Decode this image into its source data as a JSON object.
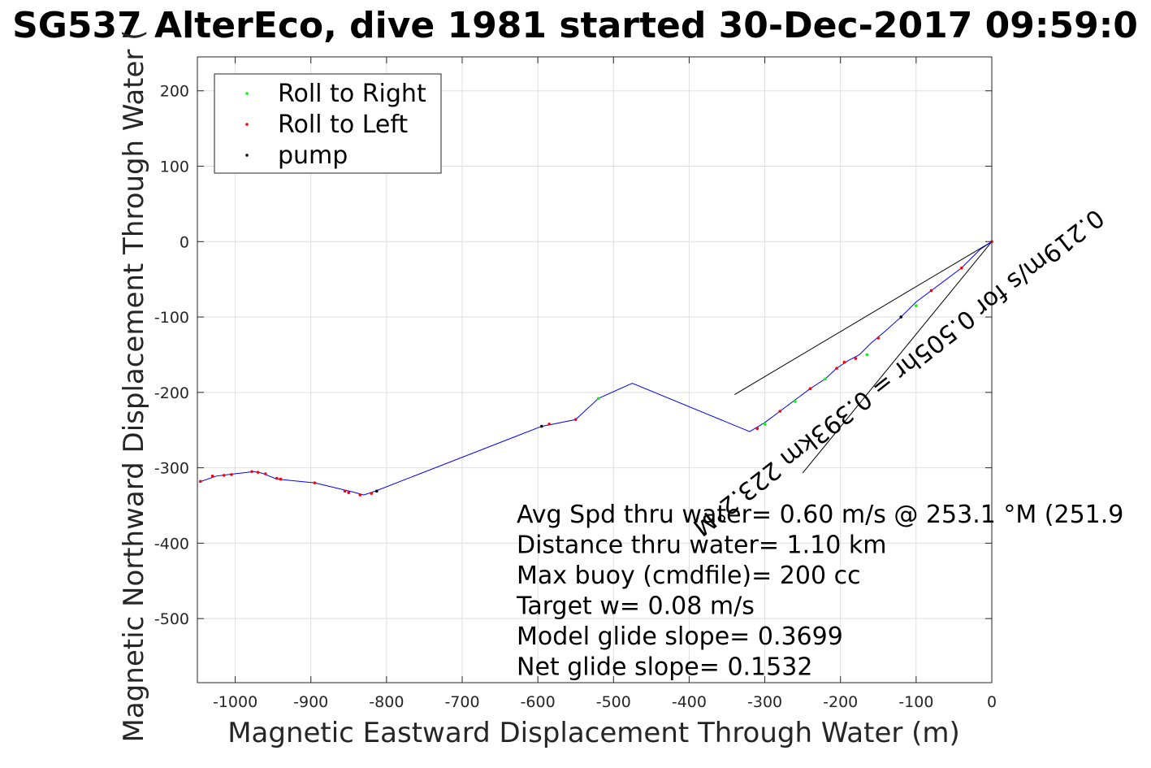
{
  "chart_data": {
    "type": "scatter",
    "title": "SG537 AlterEco, dive 1981 started 30-Dec-2017 09:59:0",
    "xlabel": "Magnetic Eastward Displacement Through Water (m)",
    "ylabel": "Magnetic Northward Displacement Through Water (",
    "xlim": [
      -1050,
      0
    ],
    "ylim": [
      -585,
      245
    ],
    "xticks": [
      -1000,
      -900,
      -800,
      -700,
      -600,
      -500,
      -400,
      -300,
      -200,
      -100,
      0
    ],
    "yticks": [
      200,
      100,
      0,
      -100,
      -200,
      -300,
      -400,
      -500
    ],
    "grid": true,
    "legend_position": "top-left",
    "legend": [
      {
        "label": "Roll to Right",
        "color": "#00ff00"
      },
      {
        "label": "Roll to Left",
        "color": "#ff0000"
      },
      {
        "label": "pump",
        "color": "#000000"
      }
    ],
    "track": {
      "color": "#0000ff",
      "points": [
        [
          0,
          0
        ],
        [
          -15,
          -10
        ],
        [
          -40,
          -35
        ],
        [
          -60,
          -50
        ],
        [
          -80,
          -65
        ],
        [
          -100,
          -80
        ],
        [
          -120,
          -100
        ],
        [
          -140,
          -118
        ],
        [
          -160,
          -135
        ],
        [
          -175,
          -150
        ],
        [
          -190,
          -158
        ],
        [
          -205,
          -168
        ],
        [
          -220,
          -182
        ],
        [
          -240,
          -195
        ],
        [
          -260,
          -210
        ],
        [
          -280,
          -225
        ],
        [
          -300,
          -240
        ],
        [
          -320,
          -252
        ],
        [
          -475,
          -188
        ],
        [
          -480,
          -190
        ],
        [
          -520,
          -208
        ],
        [
          -550,
          -236
        ],
        [
          -595,
          -245
        ],
        [
          -815,
          -331
        ],
        [
          -830,
          -336
        ],
        [
          -845,
          -332
        ],
        [
          -895,
          -320
        ],
        [
          -945,
          -315
        ],
        [
          -965,
          -307
        ],
        [
          -975,
          -305
        ],
        [
          -1010,
          -309
        ],
        [
          -1025,
          -311
        ],
        [
          -1048,
          -319
        ]
      ]
    },
    "series": [
      {
        "name": "Roll to Right",
        "color": "#00ff00",
        "points": [
          [
            -520,
            -208
          ],
          [
            -220,
            -182
          ],
          [
            -260,
            -212
          ],
          [
            -100,
            -85
          ],
          [
            -300,
            -242
          ],
          [
            -165,
            -150
          ]
        ]
      },
      {
        "name": "Roll to Left",
        "color": "#ff0000",
        "points": [
          [
            0,
            0
          ],
          [
            -40,
            -35
          ],
          [
            -80,
            -65
          ],
          [
            -150,
            -128
          ],
          [
            -180,
            -155
          ],
          [
            -195,
            -160
          ],
          [
            -205,
            -168
          ],
          [
            -240,
            -195
          ],
          [
            -280,
            -225
          ],
          [
            -310,
            -248
          ],
          [
            -550,
            -236
          ],
          [
            -585,
            -242
          ],
          [
            -820,
            -334
          ],
          [
            -835,
            -336
          ],
          [
            -850,
            -333
          ],
          [
            -855,
            -331
          ],
          [
            -895,
            -320
          ],
          [
            -940,
            -315
          ],
          [
            -945,
            -314
          ],
          [
            -960,
            -308
          ],
          [
            -970,
            -306
          ],
          [
            -978,
            -305
          ],
          [
            -1005,
            -309
          ],
          [
            -1015,
            -310
          ],
          [
            -1030,
            -311
          ],
          [
            -1046,
            -318
          ]
        ]
      },
      {
        "name": "pump",
        "color": "#000000",
        "points": [
          [
            -595,
            -245
          ],
          [
            -813,
            -331
          ],
          [
            -120,
            -100
          ]
        ]
      }
    ],
    "bounds_lines": [
      {
        "from": [
          0,
          0
        ],
        "to": [
          -340,
          -203
        ]
      },
      {
        "from": [
          0,
          0
        ],
        "to": [
          -250,
          -307
        ]
      }
    ],
    "rotated_label": {
      "text": "0.219m/s for 0.505hr = 0.393km 223.2°M",
      "anchor": [
        -130,
        -165
      ],
      "angle_deg": 142
    },
    "annotations": [
      "Avg Spd thru water=  0.60 m/s @ 253.1 °M (251.9",
      "Distance thru water=  1.10 km",
      "Max buoy (cmdfile)= 200 cc",
      "Target w= 0.08 m/s",
      "Model glide slope= 0.3699",
      "Net glide slope= 0.1532"
    ]
  }
}
